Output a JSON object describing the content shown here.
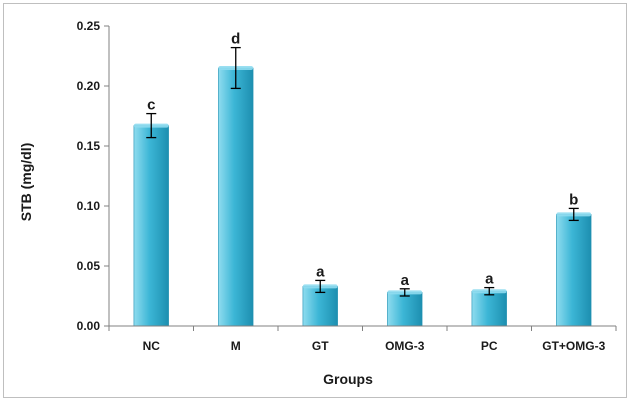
{
  "chart_data": {
    "type": "bar",
    "xlabel": "Groups",
    "ylabel": "STB (mg/dl)",
    "ylim": [
      0,
      0.25
    ],
    "yticks": [
      "0.00",
      "0.05",
      "0.10",
      "0.15",
      "0.20",
      "0.25"
    ],
    "ytick_values": [
      0,
      0.05,
      0.1,
      0.15,
      0.2,
      0.25
    ],
    "categories": [
      "NC",
      "M",
      "GT",
      "OMG-3",
      "PC",
      "GT+OMG-3"
    ],
    "values": [
      0.167,
      0.215,
      0.033,
      0.028,
      0.029,
      0.093
    ],
    "errors": [
      0.01,
      0.017,
      0.005,
      0.003,
      0.003,
      0.005
    ],
    "significance": [
      "c",
      "d",
      "a",
      "a",
      "a",
      "b"
    ],
    "grid": false,
    "colors": {
      "bar": "#3cb6d6",
      "bar_dark": "#1d8fb0",
      "bar_light": "#8fdcef",
      "axis": "#808080"
    }
  }
}
